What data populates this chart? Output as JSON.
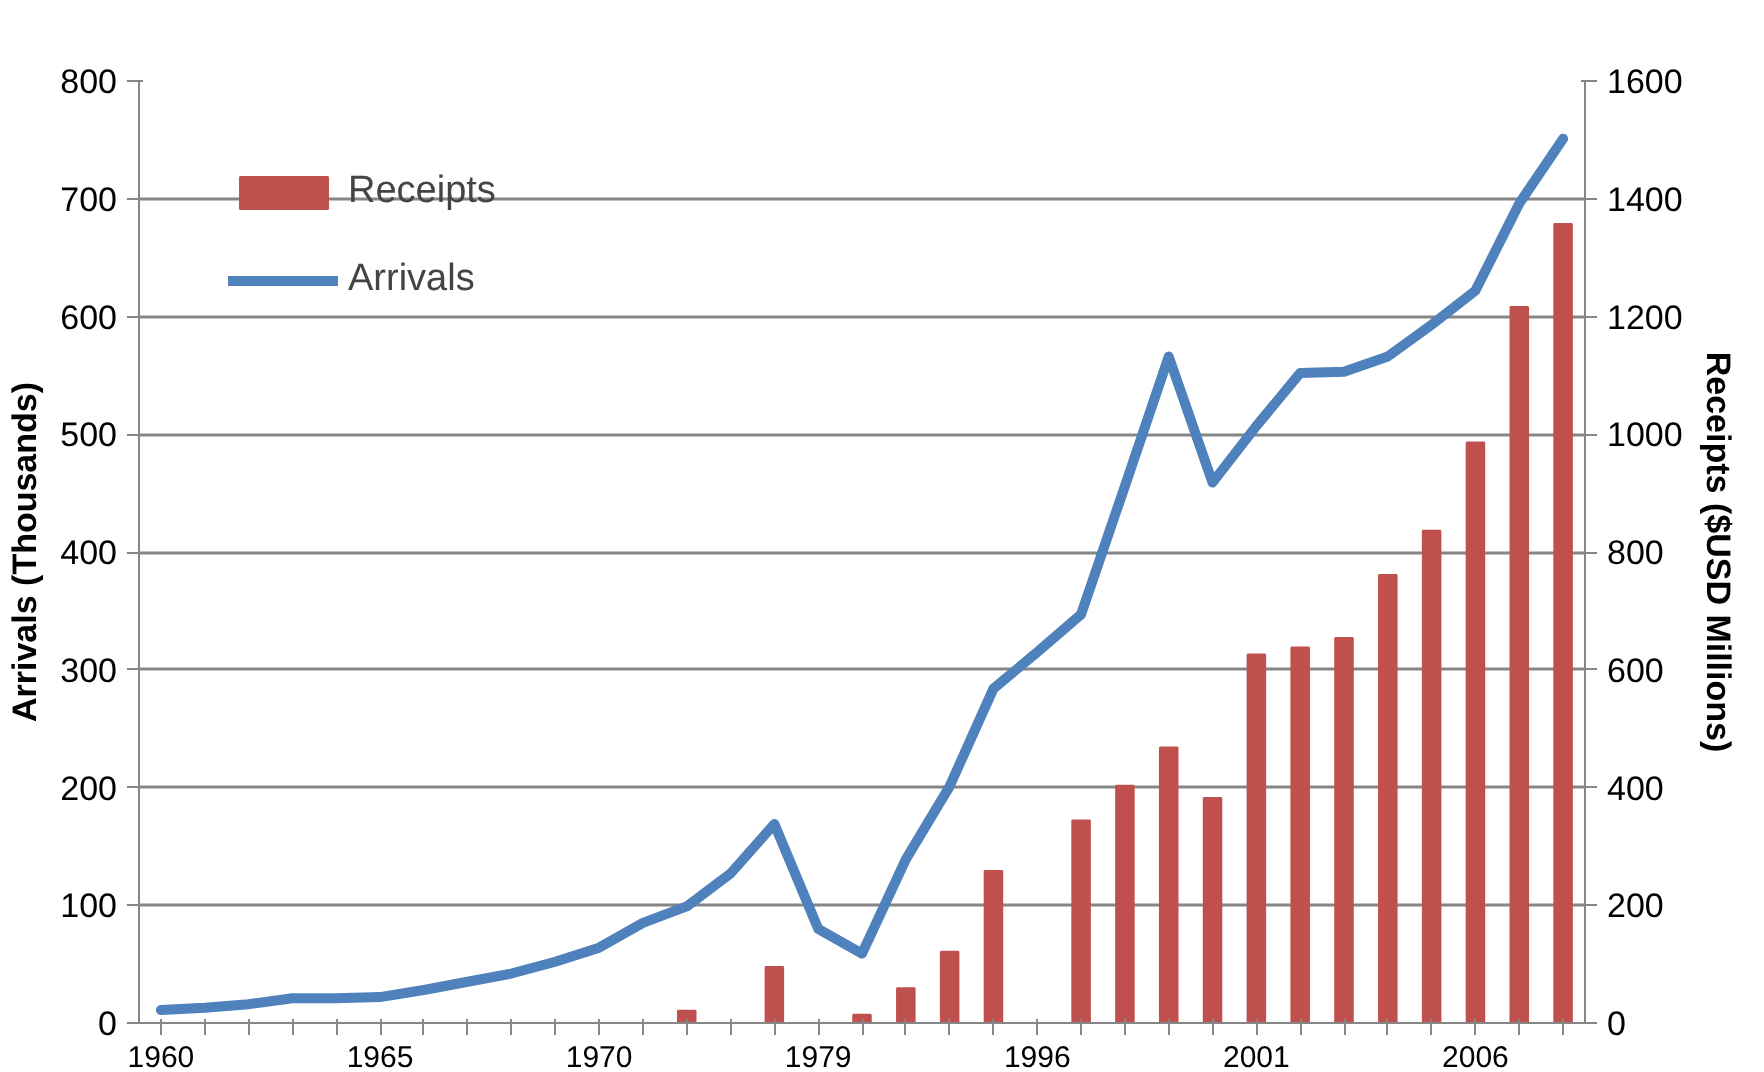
{
  "chart_data": {
    "type": "line",
    "categories": [
      "1960",
      null,
      null,
      null,
      null,
      "1965",
      null,
      null,
      null,
      null,
      "1970",
      null,
      null,
      null,
      null,
      "1979",
      null,
      null,
      null,
      null,
      "1996",
      null,
      null,
      null,
      null,
      "2001",
      null,
      null,
      null,
      null,
      "2006",
      null,
      null
    ],
    "ylabel": "Arrivals (Thousands)",
    "y2label": "Receipts ($USD Millions)",
    "ylim": [
      0,
      800
    ],
    "yticks": [
      0,
      100,
      200,
      300,
      400,
      500,
      600,
      700,
      800
    ],
    "y2lim": [
      0,
      1600
    ],
    "y2ticks": [
      0,
      200,
      400,
      600,
      800,
      1000,
      1200,
      1400,
      1600
    ],
    "grid": "y",
    "legend": "top left",
    "series": [
      {
        "name": "Receipts",
        "type": "bar",
        "axis": "y2",
        "color": "#c0504d",
        "values": [
          null,
          null,
          null,
          null,
          null,
          null,
          null,
          null,
          null,
          null,
          null,
          null,
          21,
          null,
          95,
          null,
          14,
          59,
          121,
          258,
          null,
          344,
          403,
          468,
          382,
          626,
          638,
          654,
          761,
          836,
          986,
          1216,
          1357
        ]
      },
      {
        "name": "Arrivals",
        "color": "#4f81bd",
        "values": [
          11,
          13,
          16,
          21,
          21,
          22,
          28,
          35,
          42,
          52,
          64,
          85,
          99,
          127,
          169,
          80,
          59,
          139,
          201,
          284,
          315,
          347,
          456,
          566,
          459,
          507,
          552,
          553,
          566,
          593,
          622,
          696,
          751
        ]
      }
    ]
  }
}
